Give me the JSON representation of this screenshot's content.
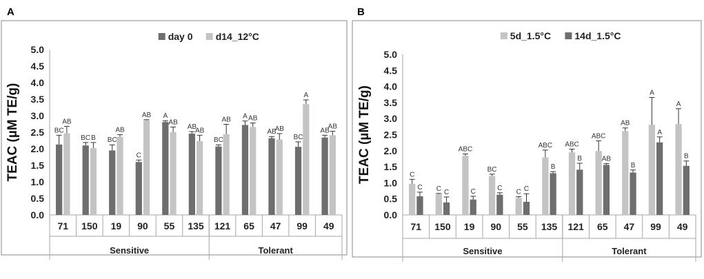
{
  "colors": {
    "dark": "#6e6e6e",
    "light": "#c4c4c4",
    "frame": "#8a8a8a",
    "axis": "#a6a6a6",
    "text": "#222222"
  },
  "chart_data": [
    {
      "panel_label": "A",
      "type": "bar",
      "ylabel": "TEAC (µM TE/g)",
      "ylim": [
        0,
        5
      ],
      "yticks": [
        "0.0",
        "0.5",
        "1.0",
        "1.5",
        "2.0",
        "2.5",
        "3.0",
        "3.5",
        "4.0",
        "4.5",
        "5.0"
      ],
      "categories": [
        "71",
        "150",
        "19",
        "90",
        "55",
        "135",
        "121",
        "65",
        "47",
        "99",
        "49"
      ],
      "groups": [
        {
          "name": "Sensitive",
          "count": 6
        },
        {
          "name": "Tolerant",
          "count": 5
        }
      ],
      "legend": "top-center",
      "series": [
        {
          "name": "day 0",
          "color": "dark",
          "values": [
            2.13,
            2.1,
            1.95,
            1.6,
            2.81,
            2.46,
            2.07,
            2.72,
            2.32,
            2.06,
            2.34
          ],
          "errors": [
            0.28,
            0.09,
            0.17,
            0.06,
            0.04,
            0.06,
            0.05,
            0.12,
            0.05,
            0.15,
            0.07
          ],
          "labels": [
            "BC",
            "BC",
            "BC",
            "C",
            "A",
            "AB",
            "BC",
            "A",
            "AB",
            "BC",
            "AB"
          ]
        },
        {
          "name": "d14_12°C",
          "color": "light",
          "values": [
            2.47,
            2.02,
            2.36,
            2.86,
            2.5,
            2.23,
            2.44,
            2.66,
            2.28,
            3.35,
            2.41
          ],
          "errors": [
            0.21,
            0.17,
            0.07,
            0.02,
            0.16,
            0.18,
            0.3,
            0.12,
            0.18,
            0.13,
            0.12
          ],
          "labels": [
            "AB",
            "B",
            "AB",
            "AB",
            "AB",
            "AB",
            "AB",
            "AB",
            "AB",
            "A",
            "AB"
          ]
        }
      ]
    },
    {
      "panel_label": "B",
      "type": "bar",
      "ylabel": "TEAC (µM TE/g)",
      "ylim": [
        0,
        5
      ],
      "yticks": [
        "0.0",
        "0.5",
        "1.0",
        "1.5",
        "2.0",
        "2.5",
        "3.0",
        "3.5",
        "4.0",
        "4.5",
        "5.0"
      ],
      "categories": [
        "71",
        "150",
        "19",
        "90",
        "55",
        "135",
        "121",
        "65",
        "47",
        "99",
        "49"
      ],
      "groups": [
        {
          "name": "Sensitive",
          "count": 6
        },
        {
          "name": "Tolerant",
          "count": 5
        }
      ],
      "legend": "top-center",
      "series": [
        {
          "name": "5d_1.5°C",
          "color": "light",
          "values": [
            0.97,
            0.65,
            1.85,
            1.21,
            0.53,
            1.79,
            1.95,
            1.99,
            2.61,
            2.81,
            2.83
          ],
          "errors": [
            0.14,
            0.02,
            0.05,
            0.06,
            0.04,
            0.23,
            0.1,
            0.32,
            0.1,
            0.85,
            0.48
          ],
          "labels": [
            "C",
            "C",
            "ABC",
            "BC",
            "C",
            "ABC",
            "ABC",
            "ABC",
            "AB",
            "A",
            "A"
          ]
        },
        {
          "name": "14d_1.5°C",
          "color": "dark",
          "values": [
            0.58,
            0.39,
            0.48,
            0.63,
            0.41,
            1.3,
            1.41,
            1.56,
            1.32,
            2.26,
            1.53
          ],
          "errors": [
            0.13,
            0.17,
            0.1,
            0.06,
            0.25,
            0.05,
            0.2,
            0.04,
            0.08,
            0.17,
            0.15
          ],
          "labels": [
            "C",
            "C",
            "C",
            "C",
            "C",
            "B",
            "B",
            "AB",
            "B",
            "A",
            "B"
          ]
        }
      ]
    }
  ]
}
